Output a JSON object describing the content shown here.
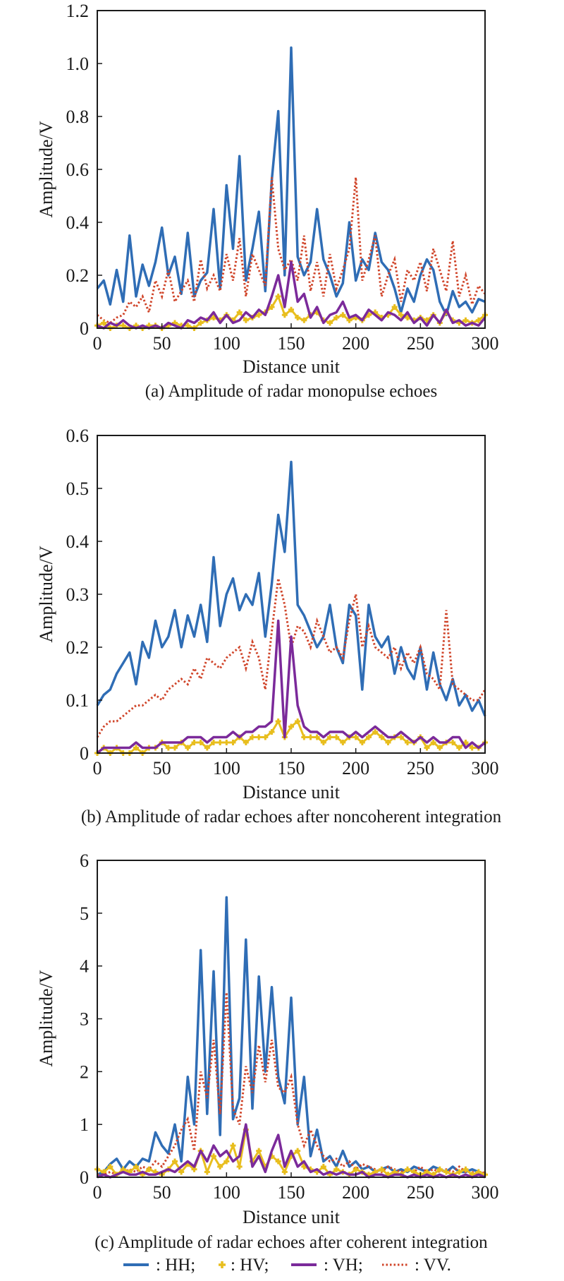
{
  "figure": {
    "legend": [
      {
        "key": "HH",
        "label": ": HH;",
        "color": "#2f6db5",
        "style": "solid"
      },
      {
        "key": "HV",
        "label": ": HV;",
        "color": "#e8be1e",
        "style": "plus-markers"
      },
      {
        "key": "VH",
        "label": ": VH;",
        "color": "#7b2a9a",
        "style": "solid"
      },
      {
        "key": "VV",
        "label": ": VV.",
        "color": "#d0452a",
        "style": "dotted"
      }
    ]
  },
  "chart_data": [
    {
      "type": "line",
      "title": "(a) Amplitude of radar monopulse echoes",
      "xlabel": "Distance unit",
      "ylabel": "Amplitude/V",
      "xlim": [
        0,
        300
      ],
      "ylim": [
        0,
        1.2
      ],
      "xticks": [
        0,
        50,
        100,
        150,
        200,
        250,
        300
      ],
      "xtick_labels": [
        "0",
        "50",
        "100",
        "150",
        "200",
        "250",
        "300"
      ],
      "yticks": [
        0,
        0.2,
        0.4,
        0.6,
        0.8,
        1.0,
        1.2
      ],
      "ytick_labels": [
        "0",
        "0.2",
        "0.4",
        "0.6",
        "0.8",
        "1.0",
        "1.2"
      ],
      "grid": false,
      "x": [
        0,
        5,
        10,
        15,
        20,
        25,
        30,
        35,
        40,
        45,
        50,
        55,
        60,
        65,
        70,
        75,
        80,
        85,
        90,
        95,
        100,
        105,
        110,
        115,
        120,
        125,
        130,
        135,
        140,
        145,
        150,
        155,
        160,
        165,
        170,
        175,
        180,
        185,
        190,
        195,
        200,
        205,
        210,
        215,
        220,
        225,
        230,
        235,
        240,
        245,
        250,
        255,
        260,
        265,
        270,
        275,
        280,
        285,
        290,
        295,
        300
      ],
      "series": [
        {
          "name": "HH",
          "values": [
            0.15,
            0.18,
            0.09,
            0.22,
            0.1,
            0.35,
            0.12,
            0.24,
            0.16,
            0.25,
            0.38,
            0.2,
            0.27,
            0.13,
            0.36,
            0.12,
            0.18,
            0.21,
            0.45,
            0.15,
            0.54,
            0.3,
            0.65,
            0.18,
            0.3,
            0.44,
            0.14,
            0.56,
            0.82,
            0.2,
            1.06,
            0.27,
            0.2,
            0.25,
            0.45,
            0.26,
            0.2,
            0.12,
            0.17,
            0.4,
            0.18,
            0.26,
            0.22,
            0.36,
            0.25,
            0.22,
            0.15,
            0.06,
            0.15,
            0.1,
            0.2,
            0.26,
            0.22,
            0.1,
            0.05,
            0.14,
            0.08,
            0.1,
            0.06,
            0.11,
            0.1
          ]
        },
        {
          "name": "HV",
          "values": [
            0.01,
            0.02,
            0.0,
            0.01,
            0.01,
            0.0,
            0.01,
            0.0,
            0.01,
            0.01,
            0.0,
            0.01,
            0.02,
            0.01,
            0.01,
            0.0,
            0.02,
            0.03,
            0.04,
            0.03,
            0.05,
            0.03,
            0.06,
            0.03,
            0.04,
            0.05,
            0.06,
            0.08,
            0.12,
            0.05,
            0.07,
            0.04,
            0.03,
            0.05,
            0.06,
            0.03,
            0.02,
            0.04,
            0.05,
            0.03,
            0.04,
            0.03,
            0.05,
            0.06,
            0.04,
            0.05,
            0.08,
            0.05,
            0.04,
            0.03,
            0.04,
            0.03,
            0.05,
            0.02,
            0.06,
            0.03,
            0.02,
            0.03,
            0.02,
            0.03,
            0.05
          ]
        },
        {
          "name": "VH",
          "values": [
            0.01,
            0.0,
            0.02,
            0.01,
            0.03,
            0.01,
            0.0,
            0.01,
            0.0,
            0.01,
            0.0,
            0.02,
            0.01,
            0.0,
            0.03,
            0.02,
            0.04,
            0.03,
            0.06,
            0.02,
            0.05,
            0.02,
            0.03,
            0.06,
            0.04,
            0.07,
            0.05,
            0.12,
            0.2,
            0.08,
            0.25,
            0.1,
            0.13,
            0.04,
            0.08,
            0.02,
            0.05,
            0.06,
            0.1,
            0.04,
            0.05,
            0.03,
            0.07,
            0.05,
            0.03,
            0.06,
            0.05,
            0.03,
            0.06,
            0.02,
            0.04,
            0.01,
            0.05,
            0.02,
            0.07,
            0.02,
            0.03,
            0.01,
            0.02,
            0.01,
            0.04
          ]
        },
        {
          "name": "VV",
          "values": [
            0.05,
            0.03,
            0.02,
            0.04,
            0.05,
            0.1,
            0.08,
            0.12,
            0.06,
            0.18,
            0.12,
            0.22,
            0.1,
            0.14,
            0.18,
            0.1,
            0.26,
            0.15,
            0.2,
            0.14,
            0.28,
            0.18,
            0.34,
            0.12,
            0.28,
            0.22,
            0.16,
            0.57,
            0.3,
            0.22,
            0.26,
            0.18,
            0.35,
            0.14,
            0.25,
            0.12,
            0.28,
            0.15,
            0.22,
            0.3,
            0.57,
            0.18,
            0.26,
            0.35,
            0.12,
            0.2,
            0.26,
            0.1,
            0.22,
            0.18,
            0.25,
            0.14,
            0.3,
            0.22,
            0.14,
            0.33,
            0.12,
            0.2,
            0.09,
            0.16,
            0.13
          ]
        }
      ]
    },
    {
      "type": "line",
      "title": "(b) Amplitude of radar echoes after noncoherent integration",
      "xlabel": "Distance unit",
      "ylabel": "Amplitude/V",
      "xlim": [
        0,
        300
      ],
      "ylim": [
        0,
        0.6
      ],
      "xticks": [
        0,
        50,
        100,
        150,
        200,
        250,
        300
      ],
      "xtick_labels": [
        "0",
        "50",
        "100",
        "150",
        "200",
        "250",
        "300"
      ],
      "yticks": [
        0,
        0.1,
        0.2,
        0.3,
        0.4,
        0.5,
        0.6
      ],
      "ytick_labels": [
        "0",
        "0.1",
        "0.2",
        "0.3",
        "0.4",
        "0.5",
        "0.6"
      ],
      "grid": false,
      "x": [
        0,
        5,
        10,
        15,
        20,
        25,
        30,
        35,
        40,
        45,
        50,
        55,
        60,
        65,
        70,
        75,
        80,
        85,
        90,
        95,
        100,
        105,
        110,
        115,
        120,
        125,
        130,
        135,
        140,
        145,
        150,
        155,
        160,
        165,
        170,
        175,
        180,
        185,
        190,
        195,
        200,
        205,
        210,
        215,
        220,
        225,
        230,
        235,
        240,
        245,
        250,
        255,
        260,
        265,
        270,
        275,
        280,
        285,
        290,
        295,
        300
      ],
      "series": [
        {
          "name": "HH",
          "values": [
            0.09,
            0.11,
            0.12,
            0.15,
            0.17,
            0.19,
            0.13,
            0.21,
            0.18,
            0.25,
            0.2,
            0.22,
            0.27,
            0.2,
            0.26,
            0.22,
            0.28,
            0.21,
            0.37,
            0.24,
            0.3,
            0.33,
            0.27,
            0.3,
            0.28,
            0.34,
            0.22,
            0.32,
            0.45,
            0.38,
            0.55,
            0.28,
            0.26,
            0.23,
            0.2,
            0.22,
            0.28,
            0.2,
            0.17,
            0.28,
            0.26,
            0.12,
            0.28,
            0.22,
            0.2,
            0.22,
            0.15,
            0.2,
            0.16,
            0.14,
            0.2,
            0.12,
            0.19,
            0.13,
            0.1,
            0.14,
            0.09,
            0.11,
            0.08,
            0.1,
            0.07
          ]
        },
        {
          "name": "HV",
          "values": [
            0.0,
            0.01,
            0.0,
            0.01,
            0.0,
            0.0,
            0.01,
            0.0,
            0.01,
            0.01,
            0.02,
            0.01,
            0.01,
            0.02,
            0.01,
            0.02,
            0.02,
            0.01,
            0.02,
            0.02,
            0.02,
            0.02,
            0.03,
            0.02,
            0.03,
            0.03,
            0.03,
            0.04,
            0.06,
            0.03,
            0.05,
            0.06,
            0.03,
            0.03,
            0.03,
            0.02,
            0.03,
            0.03,
            0.02,
            0.03,
            0.03,
            0.02,
            0.03,
            0.04,
            0.03,
            0.02,
            0.03,
            0.03,
            0.02,
            0.02,
            0.03,
            0.01,
            0.02,
            0.01,
            0.02,
            0.02,
            0.01,
            0.02,
            0.01,
            0.01,
            0.02
          ]
        },
        {
          "name": "VH",
          "values": [
            0.0,
            0.01,
            0.01,
            0.01,
            0.01,
            0.01,
            0.02,
            0.01,
            0.01,
            0.01,
            0.02,
            0.02,
            0.02,
            0.02,
            0.03,
            0.03,
            0.03,
            0.02,
            0.03,
            0.03,
            0.03,
            0.04,
            0.03,
            0.04,
            0.04,
            0.05,
            0.05,
            0.06,
            0.25,
            0.03,
            0.22,
            0.09,
            0.05,
            0.04,
            0.04,
            0.03,
            0.04,
            0.04,
            0.04,
            0.03,
            0.04,
            0.03,
            0.04,
            0.05,
            0.04,
            0.03,
            0.03,
            0.04,
            0.03,
            0.02,
            0.03,
            0.02,
            0.03,
            0.02,
            0.02,
            0.03,
            0.03,
            0.01,
            0.02,
            0.01,
            0.02
          ]
        },
        {
          "name": "VV",
          "values": [
            0.03,
            0.05,
            0.06,
            0.06,
            0.07,
            0.08,
            0.09,
            0.09,
            0.1,
            0.11,
            0.1,
            0.12,
            0.13,
            0.14,
            0.13,
            0.16,
            0.14,
            0.18,
            0.17,
            0.16,
            0.18,
            0.19,
            0.2,
            0.16,
            0.21,
            0.18,
            0.12,
            0.23,
            0.33,
            0.28,
            0.2,
            0.24,
            0.23,
            0.2,
            0.25,
            0.22,
            0.19,
            0.2,
            0.18,
            0.25,
            0.3,
            0.2,
            0.24,
            0.2,
            0.19,
            0.18,
            0.2,
            0.16,
            0.19,
            0.17,
            0.2,
            0.15,
            0.14,
            0.12,
            0.27,
            0.13,
            0.12,
            0.11,
            0.1,
            0.1,
            0.12
          ]
        }
      ]
    },
    {
      "type": "line",
      "title": "(c) Amplitude of radar echoes after coherent integration",
      "xlabel": "Distance unit",
      "ylabel": "Amplitude/V",
      "xlim": [
        0,
        300
      ],
      "ylim": [
        0,
        6
      ],
      "xticks": [
        0,
        50,
        100,
        150,
        200,
        250,
        300
      ],
      "xtick_labels": [
        "0",
        "50",
        "100",
        "150",
        "200",
        "250",
        "300"
      ],
      "yticks": [
        0,
        1,
        2,
        3,
        4,
        5,
        6
      ],
      "ytick_labels": [
        "0",
        "1",
        "2",
        "3",
        "4",
        "5",
        "6"
      ],
      "grid": false,
      "x": [
        0,
        5,
        10,
        15,
        20,
        25,
        30,
        35,
        40,
        45,
        50,
        55,
        60,
        65,
        70,
        75,
        80,
        85,
        90,
        95,
        100,
        105,
        110,
        115,
        120,
        125,
        130,
        135,
        140,
        145,
        150,
        155,
        160,
        165,
        170,
        175,
        180,
        185,
        190,
        195,
        200,
        205,
        210,
        215,
        220,
        225,
        230,
        235,
        240,
        245,
        250,
        255,
        260,
        265,
        270,
        275,
        280,
        285,
        290,
        295,
        300
      ],
      "series": [
        {
          "name": "HH",
          "values": [
            0.05,
            0.1,
            0.25,
            0.35,
            0.15,
            0.3,
            0.2,
            0.35,
            0.3,
            0.85,
            0.6,
            0.45,
            1.0,
            0.3,
            1.9,
            1.0,
            4.3,
            1.2,
            3.9,
            0.8,
            5.3,
            1.1,
            1.5,
            4.5,
            1.3,
            3.8,
            2.0,
            3.6,
            1.9,
            1.4,
            3.4,
            1.0,
            1.9,
            0.4,
            0.9,
            0.3,
            0.4,
            0.2,
            0.5,
            0.2,
            0.3,
            0.15,
            0.2,
            0.1,
            0.15,
            0.2,
            0.1,
            0.15,
            0.1,
            0.2,
            0.15,
            0.1,
            0.2,
            0.15,
            0.1,
            0.2,
            0.1,
            0.1,
            0.15,
            0.1,
            0.05
          ]
        },
        {
          "name": "HV",
          "values": [
            0.15,
            0.1,
            0.2,
            0.05,
            0.15,
            0.1,
            0.2,
            0.05,
            0.15,
            0.1,
            0.05,
            0.15,
            0.3,
            0.1,
            0.25,
            0.15,
            0.5,
            0.1,
            0.4,
            0.2,
            0.3,
            0.6,
            0.2,
            0.9,
            0.3,
            0.5,
            0.2,
            0.4,
            0.3,
            0.1,
            0.4,
            0.5,
            0.2,
            0.15,
            0.1,
            0.2,
            0.05,
            0.15,
            0.1,
            0.05,
            0.15,
            0.1,
            0.05,
            0.1,
            0.15,
            0.05,
            0.1,
            0.05,
            0.15,
            0.1,
            0.05,
            0.1,
            0.05,
            0.15,
            0.1,
            0.05,
            0.1,
            0.15,
            0.05,
            0.1,
            0.05
          ]
        },
        {
          "name": "VH",
          "values": [
            0.0,
            0.05,
            0.0,
            0.05,
            0.1,
            0.05,
            0.05,
            0.1,
            0.05,
            0.05,
            0.1,
            0.15,
            0.1,
            0.2,
            0.3,
            0.2,
            0.5,
            0.3,
            0.6,
            0.4,
            0.5,
            0.3,
            0.4,
            1.0,
            0.2,
            0.4,
            0.1,
            0.5,
            0.8,
            0.2,
            0.5,
            0.2,
            0.3,
            0.1,
            0.15,
            0.05,
            0.1,
            0.05,
            0.1,
            0.05,
            0.05,
            0.1,
            0.0,
            0.05,
            0.05,
            0.0,
            0.05,
            0.05,
            0.0,
            0.05,
            0.0,
            0.05,
            0.0,
            0.05,
            0.0,
            0.05,
            0.0,
            0.05,
            0.0,
            0.05,
            0.0
          ]
        },
        {
          "name": "VV",
          "values": [
            0.05,
            0.05,
            0.1,
            0.05,
            0.1,
            0.15,
            0.1,
            0.2,
            0.15,
            0.3,
            0.2,
            0.4,
            0.6,
            0.9,
            1.1,
            0.5,
            2.0,
            1.5,
            2.6,
            1.2,
            3.5,
            1.3,
            1.0,
            2.1,
            1.6,
            2.5,
            1.8,
            2.6,
            1.7,
            1.6,
            1.9,
            1.0,
            0.6,
            0.9,
            0.6,
            0.4,
            0.3,
            0.35,
            0.2,
            0.3,
            0.15,
            0.25,
            0.2,
            0.15,
            0.1,
            0.2,
            0.15,
            0.1,
            0.15,
            0.1,
            0.2,
            0.1,
            0.15,
            0.1,
            0.15,
            0.1,
            0.2,
            0.1,
            0.1,
            0.05,
            0.1
          ]
        }
      ]
    }
  ]
}
